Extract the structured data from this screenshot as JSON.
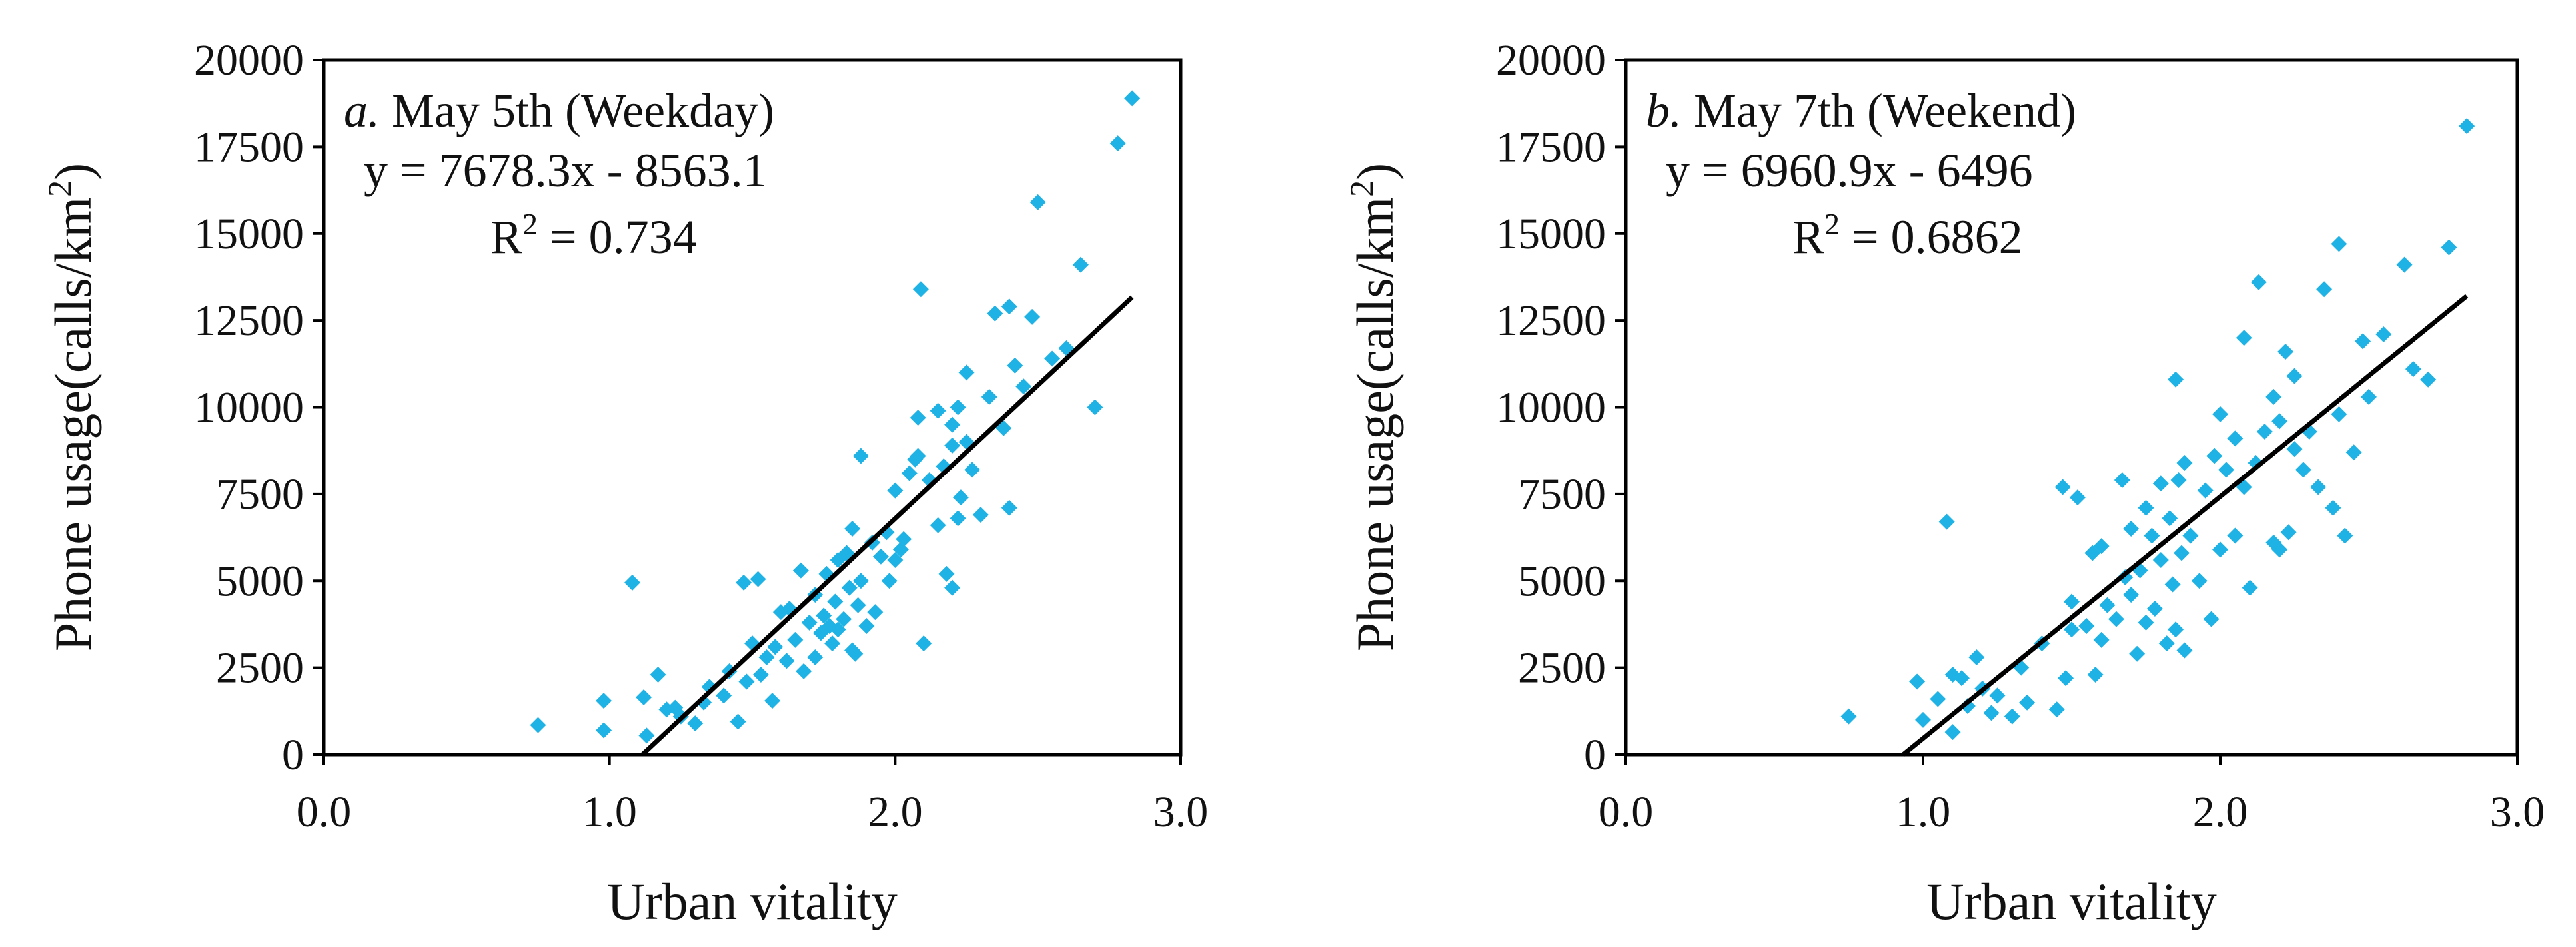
{
  "colors": {
    "points": "#1fb3e5",
    "trendline": "#000000",
    "axes": "#000000",
    "text": "#111111"
  },
  "chart_data": [
    {
      "type": "scatter",
      "panel_letter": "a.",
      "title": "May 5th (Weekday)",
      "equation": "y = 7678.3x  - 8563.1",
      "r2_label": "R",
      "r2_value": " = 0.734",
      "trendline": {
        "slope": 7678.3,
        "intercept": -8563.1
      },
      "xlabel": "Urban vitality",
      "ylabel_main": "Phone usage(calls/km",
      "ylabel_sup": "2",
      "ylabel_end": ")",
      "xlim": [
        0,
        3
      ],
      "ylim": [
        0,
        20000
      ],
      "xticks": [
        "0.0",
        "1.0",
        "2.0",
        "3.0"
      ],
      "xtick_values": [
        0,
        1,
        2,
        3
      ],
      "yticks": [
        "0",
        "2500",
        "5000",
        "7500",
        "10000",
        "12500",
        "15000",
        "17500",
        "20000"
      ],
      "ytick_values": [
        0,
        2500,
        5000,
        7500,
        10000,
        12500,
        15000,
        17500,
        20000
      ],
      "points": [
        [
          0.75,
          850
        ],
        [
          0.98,
          700
        ],
        [
          0.98,
          1550
        ],
        [
          1.08,
          4950
        ],
        [
          1.12,
          1650
        ],
        [
          1.13,
          550
        ],
        [
          1.17,
          2300
        ],
        [
          1.2,
          1300
        ],
        [
          1.23,
          1350
        ],
        [
          1.25,
          1100
        ],
        [
          1.3,
          900
        ],
        [
          1.33,
          1500
        ],
        [
          1.35,
          1950
        ],
        [
          1.4,
          1700
        ],
        [
          1.42,
          2400
        ],
        [
          1.45,
          950
        ],
        [
          1.47,
          4950
        ],
        [
          1.48,
          2100
        ],
        [
          1.5,
          3200
        ],
        [
          1.52,
          5050
        ],
        [
          1.53,
          2300
        ],
        [
          1.55,
          2800
        ],
        [
          1.57,
          1550
        ],
        [
          1.58,
          3100
        ],
        [
          1.6,
          4100
        ],
        [
          1.62,
          2700
        ],
        [
          1.63,
          4200
        ],
        [
          1.65,
          3300
        ],
        [
          1.67,
          5300
        ],
        [
          1.68,
          2400
        ],
        [
          1.7,
          3800
        ],
        [
          1.72,
          2800
        ],
        [
          1.72,
          4600
        ],
        [
          1.74,
          3500
        ],
        [
          1.75,
          4000
        ],
        [
          1.76,
          5200
        ],
        [
          1.77,
          3700
        ],
        [
          1.78,
          3200
        ],
        [
          1.79,
          4400
        ],
        [
          1.8,
          3600
        ],
        [
          1.8,
          5600
        ],
        [
          1.82,
          3900
        ],
        [
          1.83,
          5800
        ],
        [
          1.84,
          4800
        ],
        [
          1.85,
          3000
        ],
        [
          1.85,
          6500
        ],
        [
          1.86,
          2900
        ],
        [
          1.87,
          4300
        ],
        [
          1.88,
          5000
        ],
        [
          1.88,
          8600
        ],
        [
          1.9,
          3700
        ],
        [
          1.92,
          6100
        ],
        [
          1.93,
          4100
        ],
        [
          1.95,
          5700
        ],
        [
          1.97,
          6400
        ],
        [
          1.98,
          5000
        ],
        [
          2.0,
          7600
        ],
        [
          2.0,
          5600
        ],
        [
          2.02,
          5900
        ],
        [
          2.03,
          6200
        ],
        [
          2.05,
          8100
        ],
        [
          2.07,
          8500
        ],
        [
          2.08,
          9700
        ],
        [
          2.08,
          8600
        ],
        [
          2.09,
          13400
        ],
        [
          2.1,
          3200
        ],
        [
          2.12,
          7900
        ],
        [
          2.15,
          9900
        ],
        [
          2.15,
          6600
        ],
        [
          2.17,
          8300
        ],
        [
          2.18,
          5200
        ],
        [
          2.2,
          4800
        ],
        [
          2.2,
          8900
        ],
        [
          2.2,
          9500
        ],
        [
          2.22,
          6800
        ],
        [
          2.22,
          10000
        ],
        [
          2.23,
          7400
        ],
        [
          2.25,
          9000
        ],
        [
          2.25,
          11000
        ],
        [
          2.27,
          8200
        ],
        [
          2.3,
          6900
        ],
        [
          2.33,
          10300
        ],
        [
          2.35,
          12700
        ],
        [
          2.38,
          9400
        ],
        [
          2.4,
          7100
        ],
        [
          2.4,
          12900
        ],
        [
          2.42,
          11200
        ],
        [
          2.45,
          10600
        ],
        [
          2.48,
          12600
        ],
        [
          2.5,
          15900
        ],
        [
          2.55,
          11400
        ],
        [
          2.6,
          11700
        ],
        [
          2.65,
          14100
        ],
        [
          2.7,
          10000
        ],
        [
          2.78,
          17600
        ],
        [
          2.83,
          18900
        ]
      ]
    },
    {
      "type": "scatter",
      "panel_letter": "b.",
      "title": "May 7th (Weekend)",
      "equation": "y = 6960.9x  - 6496",
      "r2_label": "R",
      "r2_value": " = 0.6862",
      "trendline": {
        "slope": 6960.9,
        "intercept": -6496
      },
      "xlabel": "Urban vitality",
      "ylabel_main": "Phone usage(calls/km",
      "ylabel_sup": "2",
      "ylabel_end": ")",
      "xlim": [
        0,
        3
      ],
      "ylim": [
        0,
        20000
      ],
      "xticks": [
        "0.0",
        "1.0",
        "2.0",
        "3.0"
      ],
      "xtick_values": [
        0,
        1,
        2,
        3
      ],
      "yticks": [
        "0",
        "2500",
        "5000",
        "7500",
        "10000",
        "12500",
        "15000",
        "17500",
        "20000"
      ],
      "ytick_values": [
        0,
        2500,
        5000,
        7500,
        10000,
        12500,
        15000,
        17500,
        20000
      ],
      "points": [
        [
          0.75,
          1100
        ],
        [
          0.98,
          2100
        ],
        [
          1.0,
          1000
        ],
        [
          1.05,
          1600
        ],
        [
          1.08,
          6700
        ],
        [
          1.1,
          650
        ],
        [
          1.1,
          2300
        ],
        [
          1.13,
          2200
        ],
        [
          1.15,
          1400
        ],
        [
          1.18,
          2800
        ],
        [
          1.2,
          1900
        ],
        [
          1.23,
          1200
        ],
        [
          1.25,
          1700
        ],
        [
          1.3,
          1100
        ],
        [
          1.33,
          2500
        ],
        [
          1.35,
          1500
        ],
        [
          1.4,
          3200
        ],
        [
          1.45,
          1300
        ],
        [
          1.47,
          7700
        ],
        [
          1.48,
          2200
        ],
        [
          1.5,
          3600
        ],
        [
          1.5,
          4400
        ],
        [
          1.52,
          7400
        ],
        [
          1.55,
          3700
        ],
        [
          1.57,
          5800
        ],
        [
          1.58,
          2300
        ],
        [
          1.6,
          3300
        ],
        [
          1.6,
          6000
        ],
        [
          1.62,
          4300
        ],
        [
          1.65,
          3900
        ],
        [
          1.67,
          7900
        ],
        [
          1.68,
          5100
        ],
        [
          1.7,
          4600
        ],
        [
          1.7,
          6500
        ],
        [
          1.72,
          2900
        ],
        [
          1.73,
          5300
        ],
        [
          1.75,
          7100
        ],
        [
          1.75,
          3800
        ],
        [
          1.77,
          6300
        ],
        [
          1.78,
          4200
        ],
        [
          1.8,
          5600
        ],
        [
          1.8,
          7800
        ],
        [
          1.82,
          3200
        ],
        [
          1.83,
          6800
        ],
        [
          1.84,
          4900
        ],
        [
          1.85,
          3600
        ],
        [
          1.85,
          10800
        ],
        [
          1.86,
          7900
        ],
        [
          1.87,
          5800
        ],
        [
          1.88,
          3000
        ],
        [
          1.88,
          8400
        ],
        [
          1.9,
          6300
        ],
        [
          1.93,
          5000
        ],
        [
          1.95,
          7600
        ],
        [
          1.97,
          3900
        ],
        [
          1.98,
          8600
        ],
        [
          2.0,
          9800
        ],
        [
          2.0,
          5900
        ],
        [
          2.02,
          8200
        ],
        [
          2.05,
          6300
        ],
        [
          2.05,
          9100
        ],
        [
          2.08,
          7700
        ],
        [
          2.08,
          12000
        ],
        [
          2.1,
          4800
        ],
        [
          2.12,
          8400
        ],
        [
          2.13,
          13600
        ],
        [
          2.15,
          9300
        ],
        [
          2.18,
          6100
        ],
        [
          2.18,
          10300
        ],
        [
          2.2,
          5900
        ],
        [
          2.2,
          9600
        ],
        [
          2.22,
          11600
        ],
        [
          2.23,
          6400
        ],
        [
          2.25,
          8800
        ],
        [
          2.25,
          10900
        ],
        [
          2.28,
          8200
        ],
        [
          2.3,
          9300
        ],
        [
          2.33,
          7700
        ],
        [
          2.35,
          13400
        ],
        [
          2.38,
          7100
        ],
        [
          2.4,
          9800
        ],
        [
          2.4,
          14700
        ],
        [
          2.42,
          6300
        ],
        [
          2.45,
          8700
        ],
        [
          2.48,
          11900
        ],
        [
          2.5,
          10300
        ],
        [
          2.55,
          12100
        ],
        [
          2.62,
          14100
        ],
        [
          2.65,
          11100
        ],
        [
          2.7,
          10800
        ],
        [
          2.77,
          14600
        ],
        [
          2.83,
          18100
        ]
      ]
    }
  ]
}
